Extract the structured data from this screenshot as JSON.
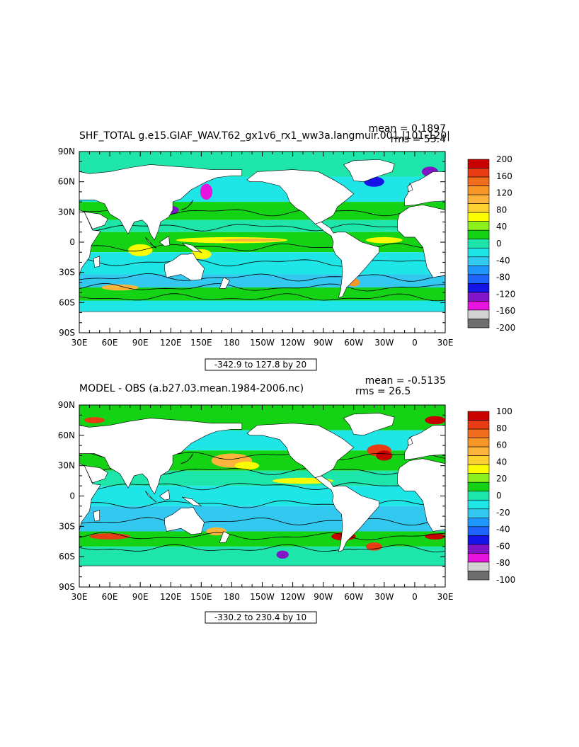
{
  "chart_data": [
    {
      "type": "heatmap",
      "title": "SHF_TOTAL g.e15.GIAF_WAV.T62_gx1v6_rx1_ww3a.langmuir.001.|101-120|",
      "stats": {
        "mean": "mean = 0.1897",
        "rms": "rms = 53.4"
      },
      "contour_range": "-342.9 to 127.8 by 20",
      "x_ticks": [
        "30E",
        "60E",
        "90E",
        "120E",
        "150E",
        "180",
        "150W",
        "120W",
        "90W",
        "60W",
        "30W",
        "0",
        "30E"
      ],
      "y_ticks": [
        "90N",
        "60N",
        "30N",
        "0",
        "30S",
        "60S",
        "90S"
      ],
      "colorbar_levels": [
        "200",
        "160",
        "120",
        "80",
        "40",
        "0",
        "-40",
        "-80",
        "-120",
        "-160",
        "-200"
      ],
      "colorbar_colors": [
        "#c80000",
        "#e83c14",
        "#f06e1e",
        "#f89628",
        "#fcb43c",
        "#fcd232",
        "#fcfc00",
        "#8cf01e",
        "#14d214",
        "#1ee6aa",
        "#1ee6e6",
        "#32c8f0",
        "#1e96fa",
        "#1e64fa",
        "#1414e6",
        "#8214c8",
        "#e614dc",
        "#d2d2d2",
        "#6e6e6e"
      ]
    },
    {
      "type": "heatmap",
      "title": "MODEL - OBS (a.b27.03.mean.1984-2006.nc)",
      "stats": {
        "mean": "mean = -0.5135",
        "rms": "rms = 26.5"
      },
      "contour_range": "-330.2 to 230.4 by 10",
      "x_ticks": [
        "30E",
        "60E",
        "90E",
        "120E",
        "150E",
        "180",
        "150W",
        "120W",
        "90W",
        "60W",
        "30W",
        "0",
        "30E"
      ],
      "y_ticks": [
        "90N",
        "60N",
        "30N",
        "0",
        "30S",
        "60S",
        "90S"
      ],
      "colorbar_levels": [
        "100",
        "80",
        "60",
        "40",
        "20",
        "0",
        "-20",
        "-40",
        "-60",
        "-80",
        "-100"
      ],
      "colorbar_colors": [
        "#c80000",
        "#e83c14",
        "#f06e1e",
        "#f89628",
        "#fcb43c",
        "#fcd232",
        "#fcfc00",
        "#8cf01e",
        "#14d214",
        "#1ee6aa",
        "#1ee6e6",
        "#32c8f0",
        "#1e96fa",
        "#1e64fa",
        "#1414e6",
        "#8214c8",
        "#e614dc",
        "#d2d2d2",
        "#6e6e6e"
      ]
    }
  ]
}
